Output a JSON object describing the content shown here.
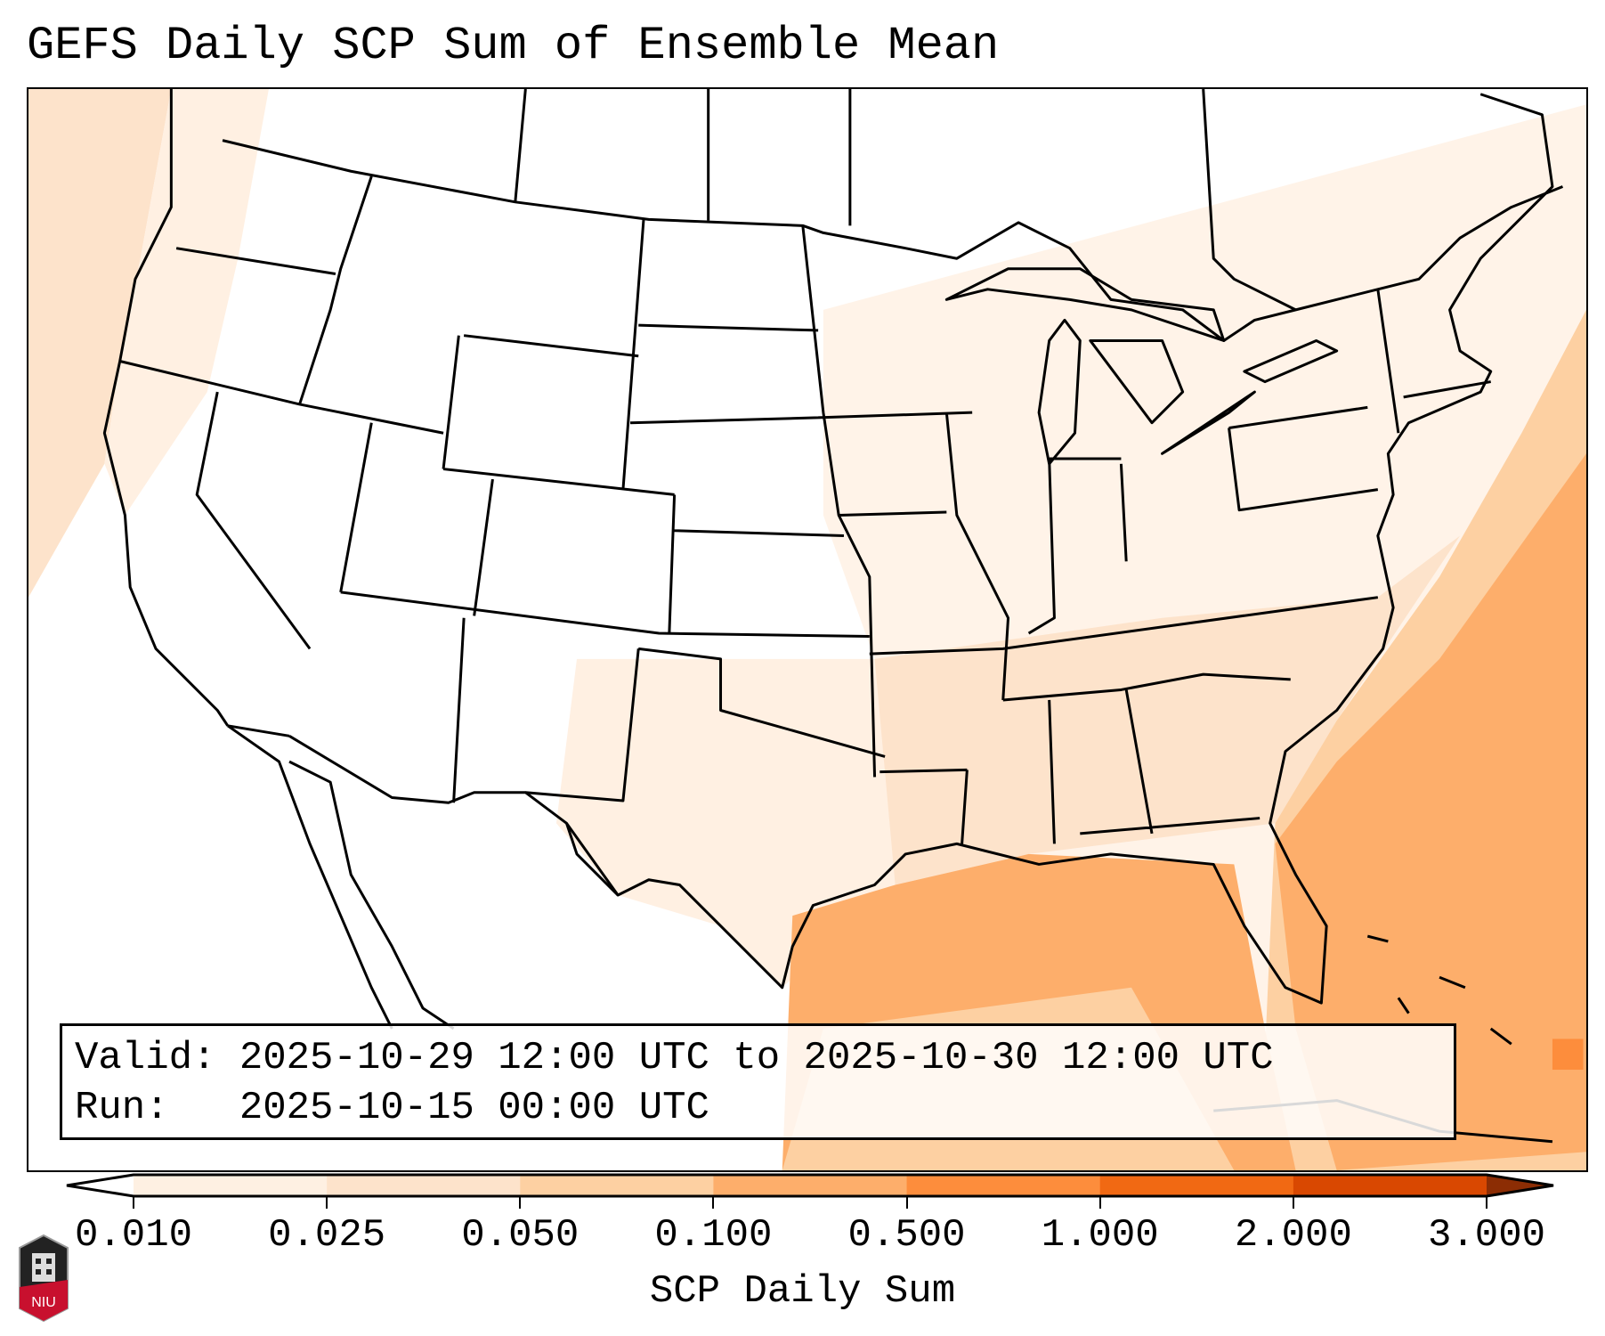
{
  "title": "GEFS Daily SCP Sum of Ensemble Mean",
  "info": {
    "valid_line": "Valid: 2025-10-29 12:00 UTC to 2025-10-30 12:00 UTC",
    "run_line": "Run:   2025-10-15 00:00 UTC"
  },
  "colorbar": {
    "label": "SCP Daily Sum",
    "ticks": [
      "0.010",
      "0.025",
      "0.050",
      "0.100",
      "0.500",
      "1.000",
      "2.000",
      "3.000"
    ],
    "colors": [
      "#fef0e2",
      "#fde3cb",
      "#fdd0a2",
      "#fdae6b",
      "#fd8d3c",
      "#f16913",
      "#d94801"
    ],
    "under_color": "#ffffff",
    "over_color": "#8c2d04"
  },
  "logo": {
    "text": "NIU"
  }
}
